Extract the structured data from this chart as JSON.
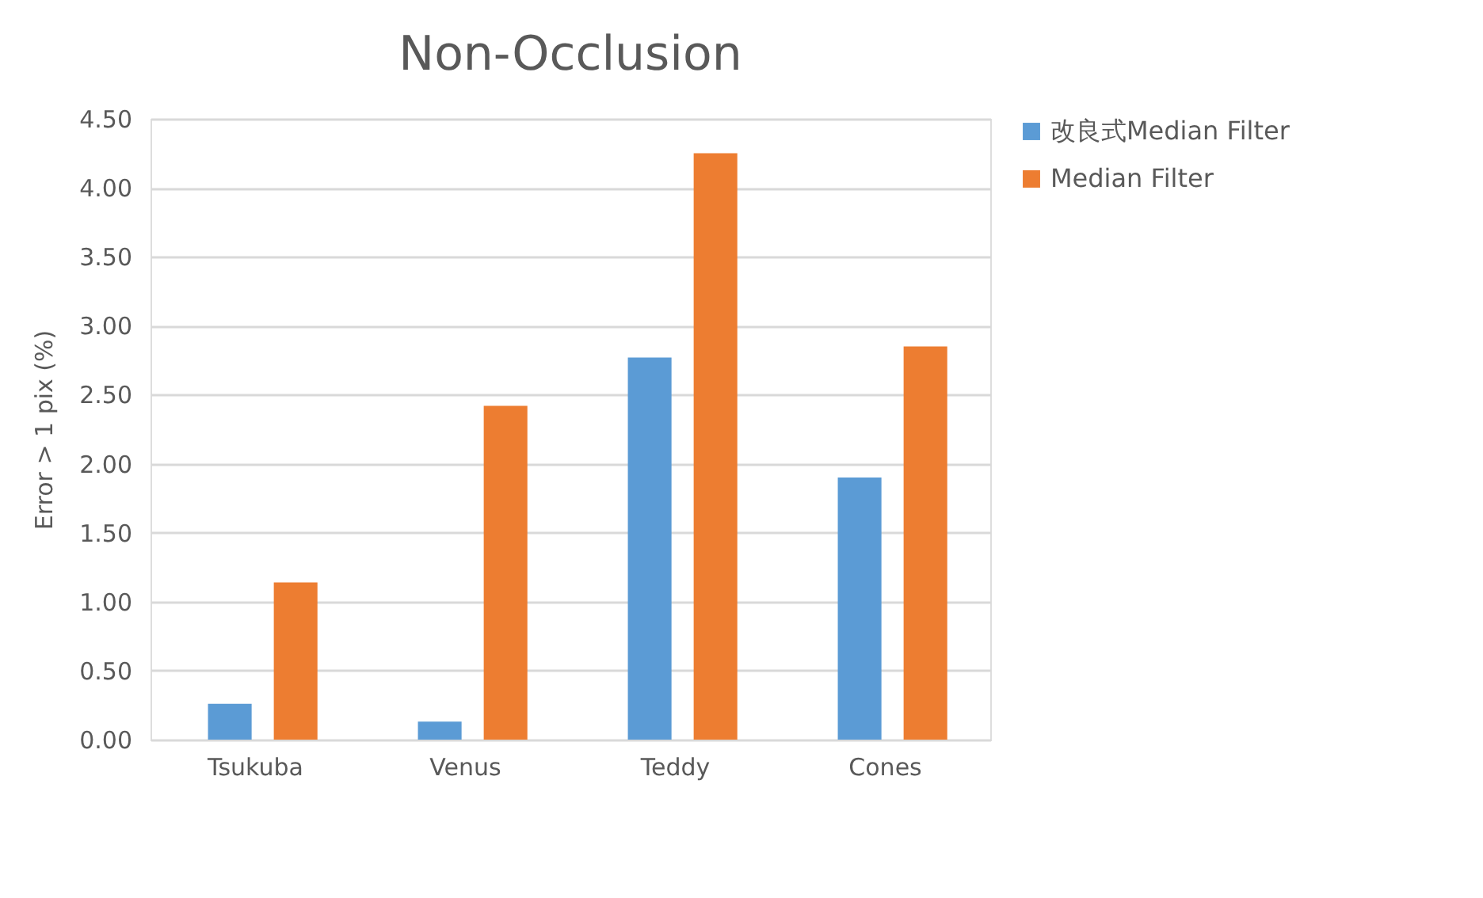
{
  "chart_data": {
    "type": "bar",
    "title": "Non-Occlusion",
    "ylabel": "Error > 1 pix (%)",
    "categories": [
      "Tsukuba",
      "Venus",
      "Teddy",
      "Cones"
    ],
    "series": [
      {
        "name": "改良式Median Filter",
        "color": "#5b9bd5",
        "values": [
          0.26,
          0.13,
          2.77,
          1.9
        ]
      },
      {
        "name": "Median Filter",
        "color": "#ed7d31",
        "values": [
          1.14,
          2.42,
          4.25,
          2.85
        ]
      }
    ],
    "ylim": [
      0,
      4.5
    ],
    "yticks": [
      {
        "value": 0,
        "label": "0.00"
      },
      {
        "value": 0.5,
        "label": "0.50"
      },
      {
        "value": 1,
        "label": "1.00"
      },
      {
        "value": 1.5,
        "label": "1.50"
      },
      {
        "value": 2,
        "label": "2.00"
      },
      {
        "value": 2.5,
        "label": "2.50"
      },
      {
        "value": 3,
        "label": "3.00"
      },
      {
        "value": 3.5,
        "label": "3.50"
      },
      {
        "value": 4,
        "label": "4.00"
      },
      {
        "value": 4.5,
        "label": "4.50"
      }
    ],
    "grid": "y",
    "legend": "right"
  }
}
